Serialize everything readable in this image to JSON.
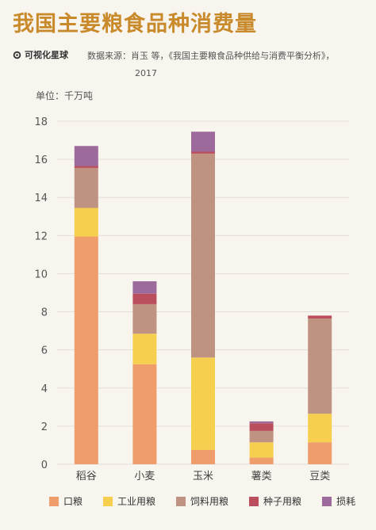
{
  "header": {
    "title": "我国主要粮食品种消费量",
    "brand": "可视化星球",
    "source": "数据来源：肖玉 等，《我国主要粮食品种供给与消费平衡分析》，",
    "source_year": "2017"
  },
  "colors": {
    "background": "#f8f4ee",
    "title": "#c98a2b",
    "grid": "#e4dfd8",
    "口粮": "#ef9d6b",
    "工业用粮": "#f7cf4e",
    "饲料用粮": "#bf9282",
    "种子用粮": "#bb4e5c",
    "损耗": "#9c6a9b"
  },
  "chart_data": {
    "type": "bar",
    "stacked": true,
    "unit_label": "单位：千万吨",
    "categories": [
      "稻谷",
      "小麦",
      "玉米",
      "薯类",
      "豆类"
    ],
    "series": [
      {
        "name": "口粮",
        "values": [
          11.95,
          5.25,
          0.75,
          0.35,
          1.15
        ]
      },
      {
        "name": "工业用粮",
        "values": [
          1.5,
          1.6,
          4.85,
          0.8,
          1.5
        ]
      },
      {
        "name": "饲料用粮",
        "values": [
          2.1,
          1.55,
          10.7,
          0.6,
          5.0
        ]
      },
      {
        "name": "种子用粮",
        "values": [
          0.1,
          0.55,
          0.1,
          0.4,
          0.15
        ]
      },
      {
        "name": "损耗",
        "values": [
          1.05,
          0.65,
          1.05,
          0.1,
          0.0
        ]
      }
    ],
    "ylim": [
      0,
      18
    ],
    "yticks": [
      0,
      2,
      4,
      6,
      8,
      10,
      12,
      14,
      16,
      18
    ],
    "grid": true,
    "legend_position": "bottom"
  }
}
